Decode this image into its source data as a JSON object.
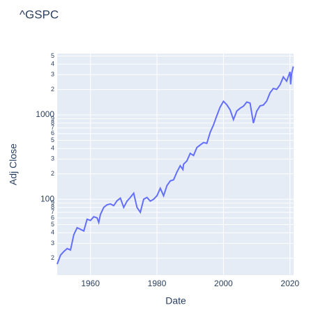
{
  "chart_data": {
    "type": "line",
    "title": "^GSPC",
    "x_label": "Date",
    "y_label": "Adj Close",
    "log_y": true,
    "grid": true,
    "x": [
      1950,
      1951,
      1952,
      1953,
      1954,
      1955,
      1956,
      1957,
      1958,
      1959,
      1960,
      1961,
      1962,
      1962.5,
      1963,
      1964,
      1965,
      1966,
      1967,
      1968,
      1969,
      1970,
      1971,
      1972,
      1973,
      1974,
      1975,
      1976,
      1977,
      1978,
      1979,
      1980,
      1981,
      1982,
      1983,
      1984,
      1985,
      1986,
      1987,
      1987.8,
      1988,
      1989,
      1990,
      1991,
      1992,
      1993,
      1994,
      1995,
      1996,
      1997,
      1998,
      1999,
      2000,
      2001,
      2002,
      2003,
      2004,
      2005,
      2006,
      2007,
      2008,
      2009,
      2010,
      2011,
      2012,
      2013,
      2014,
      2015,
      2016,
      2017,
      2018,
      2019,
      2020,
      2020.2,
      2020.5,
      2021
    ],
    "series": [
      {
        "name": "Adj Close",
        "color": "#636efa",
        "values": [
          17,
          21.7,
          24,
          26,
          25,
          38,
          46,
          44,
          42,
          58,
          56,
          62,
          60,
          53,
          66,
          80,
          86,
          88,
          84,
          96,
          103,
          80,
          95,
          105,
          118,
          80,
          70,
          100,
          105,
          95,
          100,
          110,
          135,
          110,
          145,
          165,
          170,
          210,
          250,
          225,
          260,
          285,
          350,
          330,
          410,
          440,
          470,
          460,
          620,
          760,
          980,
          1240,
          1450,
          1320,
          1150,
          880,
          1110,
          1200,
          1270,
          1420,
          1380,
          800,
          1110,
          1280,
          1310,
          1460,
          1830,
          2060,
          2010,
          2270,
          2820,
          2510,
          3240,
          2300,
          3100,
          3750
        ]
      }
    ],
    "xlim": [
      1950,
      2021.1
    ],
    "xticks": [
      1960,
      1980,
      2000,
      2020
    ],
    "ylim": [
      12.6,
      5333
    ],
    "yticks": [
      {
        "value": 20,
        "label": "2"
      },
      {
        "value": 30,
        "label": "3"
      },
      {
        "value": 40,
        "label": "4"
      },
      {
        "value": 50,
        "label": "5"
      },
      {
        "value": 60,
        "label": "6"
      },
      {
        "value": 70,
        "label": "7"
      },
      {
        "value": 80,
        "label": "8"
      },
      {
        "value": 90,
        "label": "9"
      },
      100,
      {
        "value": 200,
        "label": "2"
      },
      {
        "value": 300,
        "label": "3"
      },
      {
        "value": 400,
        "label": "4"
      },
      {
        "value": 500,
        "label": "5"
      },
      {
        "value": 600,
        "label": "6"
      },
      {
        "value": 700,
        "label": "7"
      },
      {
        "value": 800,
        "label": "8"
      },
      {
        "value": 900,
        "label": "9"
      },
      1000,
      {
        "value": 2000,
        "label": "2"
      },
      {
        "value": 3000,
        "label": "3"
      },
      {
        "value": 4000,
        "label": "4"
      },
      {
        "value": 5000,
        "label": "5"
      }
    ]
  }
}
